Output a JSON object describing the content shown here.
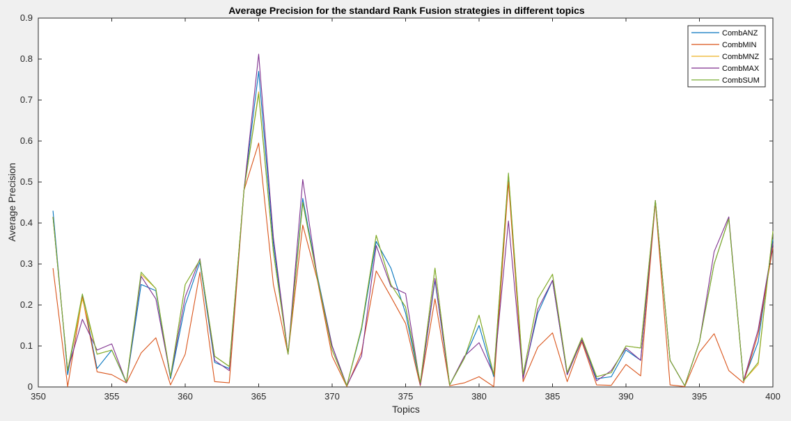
{
  "chart_data": {
    "type": "line",
    "title": "Average Precision for the standard Rank Fusion strategies in different topics",
    "xlabel": "Topics",
    "ylabel": "Average Precision",
    "xlim": [
      350,
      400
    ],
    "ylim": [
      0,
      0.9
    ],
    "xticks": [
      350,
      355,
      360,
      365,
      370,
      375,
      380,
      385,
      390,
      395,
      400
    ],
    "yticks": [
      0,
      0.1,
      0.2,
      0.3,
      0.4,
      0.5,
      0.6,
      0.7,
      0.8,
      0.9
    ],
    "xtick_labels": [
      "350",
      "355",
      "360",
      "365",
      "370",
      "375",
      "380",
      "385",
      "390",
      "395",
      "400"
    ],
    "ytick_labels": [
      "0",
      "0.1",
      "0.2",
      "0.3",
      "0.4",
      "0.5",
      "0.6",
      "0.7",
      "0.8",
      "0.9"
    ],
    "grid": false,
    "legend": "top-right",
    "x": [
      351,
      352,
      353,
      354,
      355,
      356,
      357,
      358,
      359,
      360,
      361,
      362,
      363,
      364,
      365,
      366,
      367,
      368,
      369,
      370,
      371,
      372,
      373,
      374,
      375,
      376,
      377,
      378,
      379,
      380,
      381,
      382,
      383,
      384,
      385,
      386,
      387,
      388,
      389,
      390,
      391,
      392,
      393,
      394,
      395,
      396,
      397,
      398,
      399,
      400
    ],
    "series": [
      {
        "name": "CombANZ",
        "color": "#0072BD",
        "values": [
          0.43,
          0.03,
          0.225,
          0.045,
          0.09,
          0.01,
          0.25,
          0.235,
          0.02,
          0.2,
          0.305,
          0.06,
          0.045,
          0.48,
          0.77,
          0.35,
          0.08,
          0.46,
          0.27,
          0.1,
          0.003,
          0.14,
          0.355,
          0.29,
          0.18,
          0.005,
          0.26,
          0.005,
          0.07,
          0.15,
          0.025,
          0.51,
          0.025,
          0.18,
          0.26,
          0.03,
          0.115,
          0.02,
          0.025,
          0.09,
          0.065,
          0.455,
          0.065,
          0.003,
          0.11,
          0.3,
          0.41,
          0.015,
          0.11,
          0.36
        ]
      },
      {
        "name": "CombMIN",
        "color": "#D95319",
        "values": [
          0.29,
          0.001,
          0.22,
          0.037,
          0.03,
          0.01,
          0.083,
          0.12,
          0.005,
          0.08,
          0.28,
          0.013,
          0.01,
          0.48,
          0.595,
          0.25,
          0.08,
          0.395,
          0.26,
          0.075,
          0.001,
          0.085,
          0.283,
          0.22,
          0.155,
          0.003,
          0.215,
          0.003,
          0.01,
          0.025,
          0.001,
          0.5,
          0.013,
          0.097,
          0.132,
          0.013,
          0.11,
          0.005,
          0.004,
          0.055,
          0.027,
          0.45,
          0.005,
          0.001,
          0.085,
          0.13,
          0.04,
          0.01,
          0.13,
          0.34
        ]
      },
      {
        "name": "CombMNZ",
        "color": "#EDB120",
        "values": [
          0.415,
          0.04,
          0.215,
          0.08,
          0.09,
          0.012,
          0.275,
          0.24,
          0.025,
          0.25,
          0.31,
          0.075,
          0.05,
          0.48,
          0.72,
          0.33,
          0.08,
          0.45,
          0.265,
          0.09,
          0.003,
          0.145,
          0.37,
          0.25,
          0.195,
          0.01,
          0.29,
          0.005,
          0.07,
          0.175,
          0.03,
          0.52,
          0.03,
          0.215,
          0.275,
          0.035,
          0.12,
          0.025,
          0.035,
          0.1,
          0.095,
          0.455,
          0.065,
          0.003,
          0.11,
          0.3,
          0.41,
          0.015,
          0.055,
          0.38
        ]
      },
      {
        "name": "CombMAX",
        "color": "#7E2F8E",
        "values": [
          0.415,
          0.04,
          0.165,
          0.09,
          0.105,
          0.01,
          0.27,
          0.215,
          0.025,
          0.22,
          0.313,
          0.065,
          0.04,
          0.48,
          0.812,
          0.365,
          0.08,
          0.506,
          0.265,
          0.1,
          0.003,
          0.075,
          0.345,
          0.245,
          0.228,
          0.005,
          0.265,
          0.005,
          0.075,
          0.108,
          0.03,
          0.405,
          0.02,
          0.19,
          0.26,
          0.03,
          0.115,
          0.015,
          0.04,
          0.095,
          0.065,
          0.455,
          0.065,
          0.003,
          0.11,
          0.33,
          0.415,
          0.015,
          0.14,
          0.35
        ]
      },
      {
        "name": "CombSUM",
        "color": "#77AC30",
        "values": [
          0.415,
          0.04,
          0.227,
          0.08,
          0.09,
          0.012,
          0.28,
          0.24,
          0.025,
          0.25,
          0.31,
          0.075,
          0.05,
          0.48,
          0.715,
          0.33,
          0.08,
          0.45,
          0.265,
          0.09,
          0.003,
          0.145,
          0.37,
          0.25,
          0.195,
          0.01,
          0.29,
          0.005,
          0.07,
          0.175,
          0.03,
          0.522,
          0.03,
          0.215,
          0.275,
          0.035,
          0.12,
          0.025,
          0.035,
          0.1,
          0.095,
          0.455,
          0.065,
          0.003,
          0.11,
          0.3,
          0.41,
          0.015,
          0.06,
          0.38
        ]
      }
    ]
  }
}
